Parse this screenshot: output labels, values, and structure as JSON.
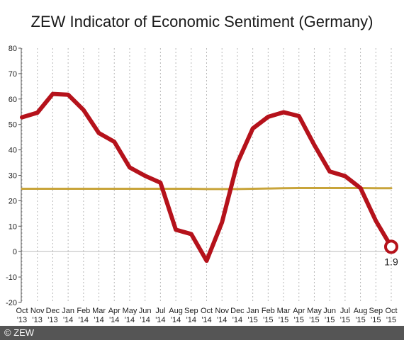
{
  "footer": {
    "text": "© ZEW"
  },
  "chart_data": {
    "type": "line",
    "title": "ZEW Indicator of Economic Sentiment (Germany)",
    "xlabel": "",
    "ylabel": "",
    "ylim": [
      -20,
      80
    ],
    "yticks": [
      -20,
      -10,
      0,
      10,
      20,
      30,
      40,
      50,
      60,
      70,
      80
    ],
    "grid": "vertical-dotted",
    "categories": [
      [
        "Oct",
        "'13"
      ],
      [
        "Nov",
        "'13"
      ],
      [
        "Dec",
        "'13"
      ],
      [
        "Jan",
        "'14"
      ],
      [
        "Feb",
        "'14"
      ],
      [
        "Mar",
        "'14"
      ],
      [
        "Apr",
        "'14"
      ],
      [
        "May",
        "'14"
      ],
      [
        "Jun",
        "'14"
      ],
      [
        "Jul",
        "'14"
      ],
      [
        "Aug",
        "'14"
      ],
      [
        "Sep",
        "'14"
      ],
      [
        "Oct",
        "'14"
      ],
      [
        "Nov",
        "'14"
      ],
      [
        "Dec",
        "'14"
      ],
      [
        "Jan",
        "'15"
      ],
      [
        "Feb",
        "'15"
      ],
      [
        "Mar",
        "'15"
      ],
      [
        "Apr",
        "'15"
      ],
      [
        "May",
        "'15"
      ],
      [
        "Jun",
        "'15"
      ],
      [
        "Jul",
        "'15"
      ],
      [
        "Aug",
        "'15"
      ],
      [
        "Sep",
        "'15"
      ],
      [
        "Oct",
        "'15"
      ]
    ],
    "series": [
      {
        "color": "#b5121b",
        "values": [
          52.8,
          54.6,
          62.0,
          61.7,
          55.7,
          46.6,
          43.2,
          33.1,
          29.8,
          27.1,
          8.6,
          6.9,
          -3.6,
          11.5,
          34.9,
          48.4,
          53.0,
          54.8,
          53.3,
          41.9,
          31.5,
          29.7,
          25.0,
          12.1,
          1.9
        ],
        "end_marker": true,
        "end_label": "1.9"
      },
      {
        "color": "#c8a43a",
        "values": [
          24.7,
          24.7,
          24.7,
          24.7,
          24.7,
          24.7,
          24.7,
          24.7,
          24.7,
          24.7,
          24.7,
          24.7,
          24.6,
          24.6,
          24.6,
          24.7,
          24.8,
          24.9,
          25.0,
          25.0,
          25.0,
          25.0,
          25.0,
          24.9,
          24.9
        ]
      }
    ]
  }
}
